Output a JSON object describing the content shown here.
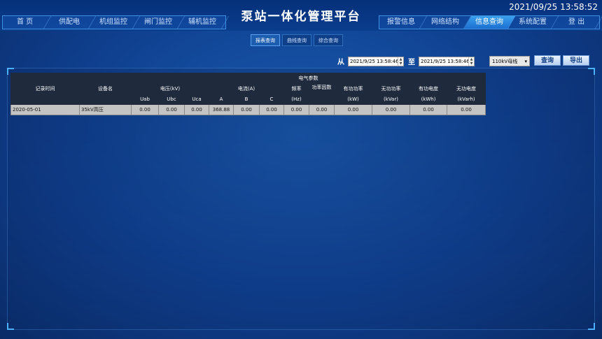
{
  "header": {
    "title": "泵站一体化管理平台",
    "datetime": "2021/09/25 13:58:52"
  },
  "nav_left": [
    {
      "label": "首 页"
    },
    {
      "label": "供配电"
    },
    {
      "label": "机组监控"
    },
    {
      "label": "闸门监控"
    },
    {
      "label": "辅机监控"
    }
  ],
  "nav_right": [
    {
      "label": "报警信息"
    },
    {
      "label": "网络结构"
    },
    {
      "label": "信息查询",
      "active": true
    },
    {
      "label": "系统配置"
    },
    {
      "label": "登 出"
    }
  ],
  "subtabs": [
    {
      "label": "报表查询",
      "active": true
    },
    {
      "label": "曲线查询"
    },
    {
      "label": "综合查询"
    }
  ],
  "filters": {
    "from_label": "从",
    "from_value": "2021/9/25 13:58:46",
    "to_label": "至",
    "to_value": "2021/9/25 13:58:46",
    "bus_select": "110kV母线",
    "query_button": "查询",
    "export_button": "导出"
  },
  "table": {
    "group_header": "电气参数",
    "col_time": "记录时间",
    "col_device": "设备名",
    "voltage": "电压(kV)",
    "current": "电流(A)",
    "freq": "频率",
    "freq_unit": "(Hz)",
    "pf": "功率因数",
    "p": "有功功率",
    "p_unit": "(kW)",
    "q": "无功功率",
    "q_unit": "(kVar)",
    "ep": "有功电度",
    "ep_unit": "(kWh)",
    "eq": "无功电度",
    "eq_unit": "(kVarh)",
    "sub": [
      "Uab",
      "Ubc",
      "Uca",
      "A",
      "B",
      "C"
    ],
    "rows": [
      [
        "2020-05-01",
        "35kV高压",
        "0.00",
        "0.00",
        "0.00",
        "368.88",
        "0.00",
        "0.00",
        "0.00",
        "0.00",
        "0.00",
        "0.00",
        "0.00",
        "0.00"
      ]
    ]
  }
}
